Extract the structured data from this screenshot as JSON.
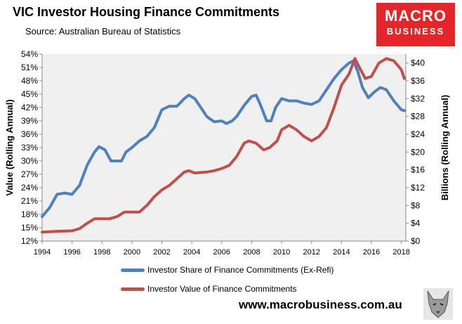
{
  "header": {
    "title": "VIC Investor Housing Finance Commitments",
    "source": "Source: Australian Bureau of Statistics"
  },
  "logo": {
    "line1": "MACRO",
    "line2": "BUSINESS",
    "color": "#e4262a"
  },
  "footer": {
    "website": "www.macrobusiness.com.au"
  },
  "chart_data": {
    "type": "line",
    "x_ticks": [
      "1994",
      "1996",
      "1998",
      "2000",
      "2002",
      "2004",
      "2006",
      "2008",
      "2010",
      "2012",
      "2014",
      "2016",
      "2018"
    ],
    "xlim": [
      1994,
      2018.3
    ],
    "y_left": {
      "label": "Value (Rolling Annual)",
      "ticks": [
        "12%",
        "15%",
        "18%",
        "21%",
        "24%",
        "27%",
        "30%",
        "33%",
        "36%",
        "39%",
        "42%",
        "45%",
        "48%",
        "51%",
        "54%"
      ],
      "lim": [
        12,
        54
      ]
    },
    "y_right": {
      "label": "Billions (Rolling Annual)",
      "ticks": [
        "$0",
        "$4",
        "$8",
        "$12",
        "$16",
        "$20",
        "$24",
        "$28",
        "$32",
        "$36",
        "$40"
      ],
      "lim": [
        0,
        42
      ]
    },
    "grid": false,
    "plot_background": "#f0f0f0",
    "series": [
      {
        "name": "Investor Share of Finance Commitments (Ex-Refi)",
        "axis": "left",
        "color": "#4e81bd",
        "points": [
          [
            1994,
            17.5
          ],
          [
            1994.5,
            19.5
          ],
          [
            1995,
            22.5
          ],
          [
            1995.5,
            22.8
          ],
          [
            1996,
            22.5
          ],
          [
            1996.5,
            24.5
          ],
          [
            1997,
            29
          ],
          [
            1997.5,
            32
          ],
          [
            1997.8,
            33.2
          ],
          [
            1998.2,
            32.5
          ],
          [
            1998.6,
            30
          ],
          [
            1999,
            30
          ],
          [
            1999.3,
            30
          ],
          [
            1999.6,
            32
          ],
          [
            2000,
            33
          ],
          [
            2000.5,
            34.5
          ],
          [
            2001,
            35.5
          ],
          [
            2001.5,
            37.5
          ],
          [
            2002,
            41.5
          ],
          [
            2002.5,
            42.3
          ],
          [
            2003,
            42.3
          ],
          [
            2003.5,
            44
          ],
          [
            2003.8,
            44.8
          ],
          [
            2004.2,
            44
          ],
          [
            2004.6,
            42
          ],
          [
            2005,
            40
          ],
          [
            2005.5,
            38.8
          ],
          [
            2006,
            39
          ],
          [
            2006.3,
            38.4
          ],
          [
            2006.7,
            39
          ],
          [
            2007,
            40
          ],
          [
            2007.5,
            42.5
          ],
          [
            2008,
            44.5
          ],
          [
            2008.3,
            44.8
          ],
          [
            2008.6,
            42.5
          ],
          [
            2009,
            39
          ],
          [
            2009.3,
            39
          ],
          [
            2009.6,
            42
          ],
          [
            2010,
            44
          ],
          [
            2010.5,
            43.5
          ],
          [
            2011,
            43.5
          ],
          [
            2011.5,
            43
          ],
          [
            2012,
            42.7
          ],
          [
            2012.5,
            43.5
          ],
          [
            2013,
            46
          ],
          [
            2013.5,
            48.5
          ],
          [
            2014,
            50.5
          ],
          [
            2014.5,
            52
          ],
          [
            2014.8,
            52.5
          ],
          [
            2015.1,
            50
          ],
          [
            2015.4,
            46.5
          ],
          [
            2015.8,
            44.2
          ],
          [
            2016.2,
            45.5
          ],
          [
            2016.6,
            46.5
          ],
          [
            2017,
            46
          ],
          [
            2017.5,
            43.5
          ],
          [
            2018,
            41.5
          ],
          [
            2018.2,
            41.3
          ]
        ]
      },
      {
        "name": "Investor Value of Finance Commitments",
        "axis": "right",
        "color": "#c0504d",
        "points": [
          [
            1994,
            2
          ],
          [
            1995,
            2.2
          ],
          [
            1996,
            2.3
          ],
          [
            1996.5,
            2.8
          ],
          [
            1997,
            4
          ],
          [
            1997.5,
            5
          ],
          [
            1998,
            5
          ],
          [
            1998.5,
            5
          ],
          [
            1999,
            5.5
          ],
          [
            1999.5,
            6.5
          ],
          [
            2000,
            6.5
          ],
          [
            2000.5,
            6.5
          ],
          [
            2001,
            8
          ],
          [
            2001.5,
            10
          ],
          [
            2002,
            11.5
          ],
          [
            2002.5,
            12.5
          ],
          [
            2003,
            14
          ],
          [
            2003.5,
            15.5
          ],
          [
            2003.8,
            15.8
          ],
          [
            2004.2,
            15.3
          ],
          [
            2005,
            15.5
          ],
          [
            2005.5,
            15.8
          ],
          [
            2006,
            16.3
          ],
          [
            2006.5,
            17
          ],
          [
            2007,
            19
          ],
          [
            2007.5,
            22
          ],
          [
            2007.8,
            22.5
          ],
          [
            2008.3,
            22
          ],
          [
            2008.8,
            20.5
          ],
          [
            2009.2,
            21
          ],
          [
            2009.7,
            22.5
          ],
          [
            2010,
            25
          ],
          [
            2010.5,
            26
          ],
          [
            2011,
            25
          ],
          [
            2011.5,
            23.5
          ],
          [
            2012,
            22.5
          ],
          [
            2012.5,
            23.5
          ],
          [
            2013,
            25.5
          ],
          [
            2013.5,
            30
          ],
          [
            2014,
            35
          ],
          [
            2014.5,
            37.5
          ],
          [
            2014.9,
            41
          ],
          [
            2015.2,
            39
          ],
          [
            2015.6,
            36.5
          ],
          [
            2016,
            37
          ],
          [
            2016.5,
            40
          ],
          [
            2017,
            41
          ],
          [
            2017.5,
            40.5
          ],
          [
            2018,
            38.5
          ],
          [
            2018.2,
            36.5
          ]
        ]
      }
    ]
  }
}
